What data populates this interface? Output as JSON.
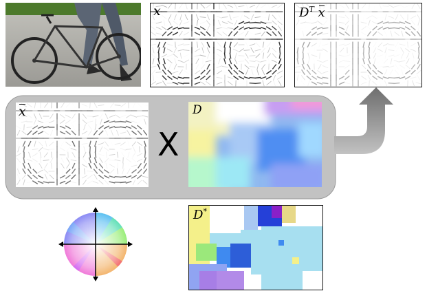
{
  "labels": {
    "hog_x": "x",
    "hog_reconstructed_prefix": "D",
    "hog_reconstructed_sup": "T",
    "hog_reconstructed_suffix": "x",
    "hog_xbar": "x",
    "dictionary": "D",
    "dictionary_star_prefix": "D",
    "dictionary_star_sup": "*",
    "multiply_symbol": "X"
  },
  "colors": {
    "flow_box": "#c2c2c2",
    "flow_box_border": "#9a9a9a",
    "arrow": "#8a8a8a"
  },
  "icons": {
    "bicycle_photo": "bicycle-photo",
    "orientation_wheel": "color-wheel-icon",
    "flow_arrow": "up-arrow-icon"
  }
}
